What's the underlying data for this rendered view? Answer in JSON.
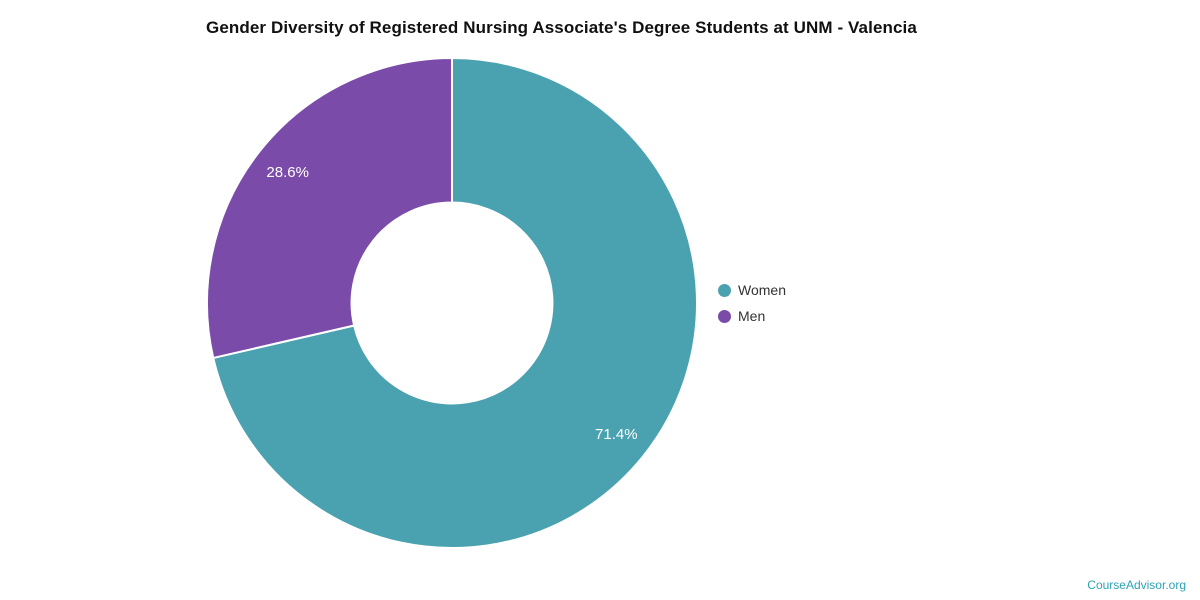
{
  "chart_data": {
    "type": "pie",
    "title": "Gender Diversity of Registered Nursing Associate's Degree Students at UNM - Valencia",
    "donut": true,
    "inner_radius_ratio": 0.41,
    "start_angle_deg": 0,
    "direction": "clockwise",
    "legend_position": "right",
    "categories": [
      "Women",
      "Men"
    ],
    "values": [
      71.4,
      28.6
    ],
    "series": [
      {
        "name": "Women",
        "value": 71.4,
        "label": "71.4%",
        "color": "#4aa2b1"
      },
      {
        "name": "Men",
        "value": 28.6,
        "label": "28.6%",
        "color": "#7a4ba8"
      }
    ],
    "slice_label_color": "#ffffff"
  },
  "footer": {
    "brand": "CourseAdvisor.org",
    "color": "#2fa3b6"
  }
}
